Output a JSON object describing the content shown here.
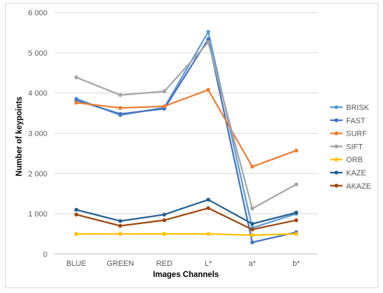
{
  "chart_data": {
    "type": "line",
    "title": "",
    "xlabel": "Images Channels",
    "ylabel": "Number of keypoints",
    "categories": [
      "BLUE",
      "GREEN",
      "RED",
      "L*",
      "a*",
      "b*"
    ],
    "ylim": [
      0,
      6000
    ],
    "yticks": [
      0,
      1000,
      2000,
      3000,
      4000,
      5000,
      6000
    ],
    "ytick_labels": [
      "0",
      "1 000",
      "2 000",
      "3 000",
      "4 000",
      "5 000",
      "6 000"
    ],
    "grid": true,
    "legend_position": "right",
    "series": [
      {
        "name": "BRISK",
        "color": "#5b9bd5",
        "values": [
          3860,
          3450,
          3640,
          5520,
          650,
          1000
        ]
      },
      {
        "name": "FAST",
        "color": "#4472c4",
        "values": [
          3820,
          3480,
          3610,
          5340,
          290,
          540
        ]
      },
      {
        "name": "SURF",
        "color": "#ed7d31",
        "values": [
          3760,
          3630,
          3670,
          4080,
          2170,
          2570
        ]
      },
      {
        "name": "SIFT",
        "color": "#a5a5a5",
        "values": [
          4390,
          3950,
          4040,
          5260,
          1130,
          1730
        ]
      },
      {
        "name": "ORB",
        "color": "#ffc000",
        "values": [
          500,
          500,
          500,
          500,
          470,
          500
        ]
      },
      {
        "name": "KAZE",
        "color": "#255e91",
        "values": [
          1100,
          820,
          980,
          1350,
          750,
          1030
        ]
      },
      {
        "name": "AKAZE",
        "color": "#9e480e",
        "values": [
          980,
          700,
          840,
          1140,
          610,
          840
        ]
      }
    ]
  }
}
